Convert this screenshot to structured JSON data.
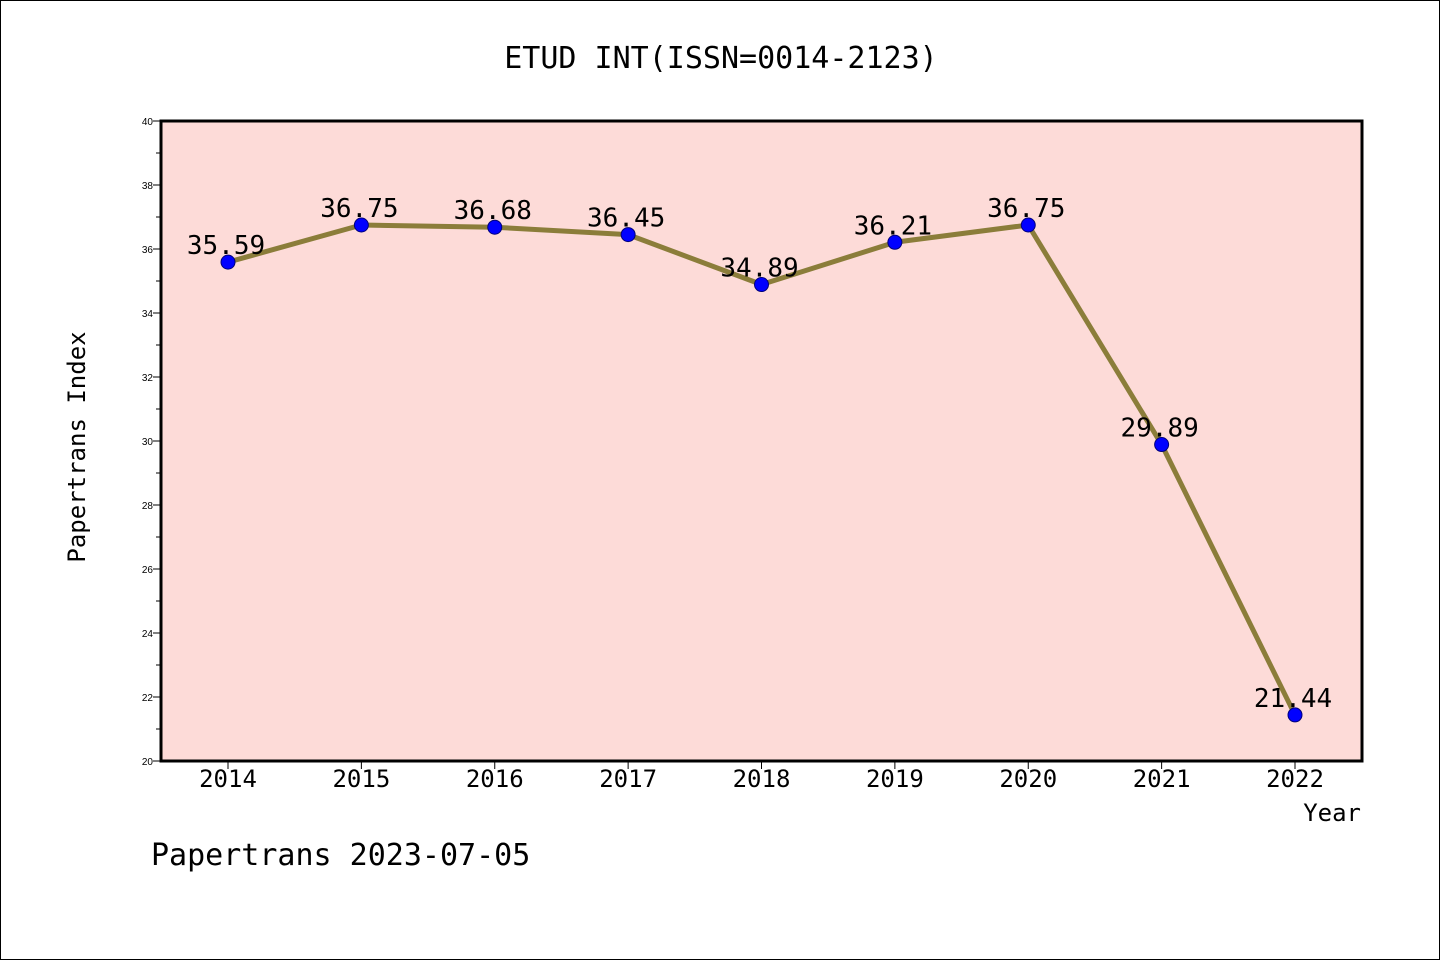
{
  "chart_data": {
    "type": "line",
    "title": "ETUD INT(ISSN=0014-2123)",
    "xlabel": "Year",
    "ylabel": "Papertrans Index",
    "categories": [
      "2014",
      "2015",
      "2016",
      "2017",
      "2018",
      "2019",
      "2020",
      "2021",
      "2022"
    ],
    "series": [
      {
        "values": [
          35.59,
          36.75,
          36.68,
          36.45,
          34.89,
          36.21,
          36.75,
          29.89,
          21.44
        ],
        "labels": [
          "35.59",
          "36.75",
          "36.68",
          "36.45",
          "34.89",
          "36.21",
          "36.75",
          "29.89",
          "21.44"
        ]
      }
    ],
    "ylim": [
      20,
      40
    ],
    "yticks": [
      "20",
      "22",
      "24",
      "26",
      "28",
      "30",
      "32",
      "34",
      "36",
      "38",
      "40"
    ],
    "grid": false,
    "colors": {
      "plot_background": "#fddbd8",
      "line": "#8b7d3a",
      "marker": "#0000ff"
    }
  },
  "footer": "Papertrans 2023-07-05"
}
